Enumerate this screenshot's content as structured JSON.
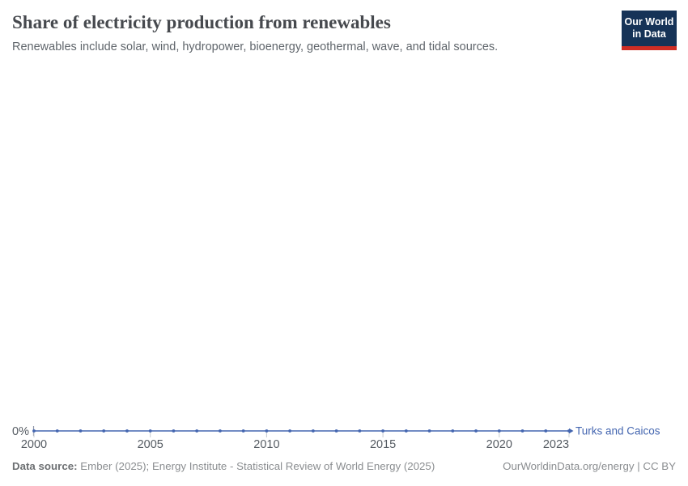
{
  "header": {
    "title": "Share of electricity production from renewables",
    "subtitle": "Renewables include solar, wind, hydropower, bioenergy, geothermal, wave, and tidal sources.",
    "logo": {
      "line1": "Our World",
      "line2": "in Data"
    }
  },
  "chart_data": {
    "type": "line",
    "title": "Share of electricity production from renewables",
    "x": [
      2000,
      2001,
      2002,
      2003,
      2004,
      2005,
      2006,
      2007,
      2008,
      2009,
      2010,
      2011,
      2012,
      2013,
      2014,
      2015,
      2016,
      2017,
      2018,
      2019,
      2020,
      2021,
      2022,
      2023
    ],
    "series": [
      {
        "name": "Turks and Caicos",
        "color": "#4466b0",
        "values": [
          0,
          0,
          0,
          0,
          0,
          0,
          0,
          0,
          0,
          0,
          0,
          0,
          0,
          0,
          0,
          0,
          0,
          0,
          0,
          0,
          0,
          0,
          0,
          0
        ]
      }
    ],
    "x_ticks": [
      2000,
      2005,
      2010,
      2015,
      2020,
      2023
    ],
    "y_ticks": [
      {
        "value": 0,
        "label": "0%"
      }
    ],
    "xlim": [
      2000,
      2023
    ],
    "ylim": [
      0,
      100
    ],
    "ylabel": "",
    "xlabel": "",
    "grid": false,
    "legend_position": "end-of-line",
    "marker": "circle"
  },
  "footer": {
    "source_label": "Data source:",
    "source_text": " Ember (2025); Energy Institute - Statistical Review of World Energy (2025)",
    "right_text": "OurWorldinData.org/energy | CC BY"
  },
  "colors": {
    "accent_line": "#4466b0",
    "logo_bg": "#163357",
    "logo_stripe": "#cf2d24",
    "axis_tick": "#c6cbd0",
    "axis_text": "#565c63"
  }
}
